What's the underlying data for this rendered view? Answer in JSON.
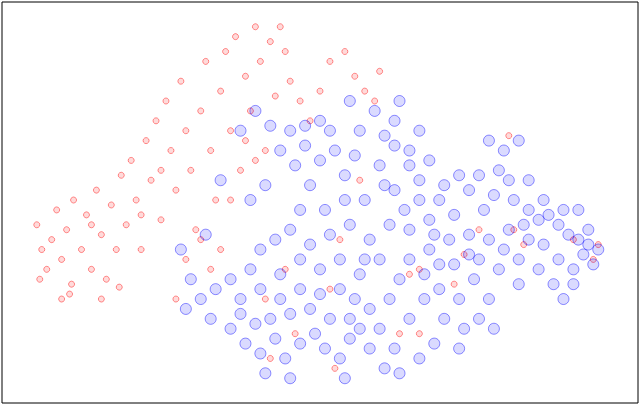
{
  "chart_data": {
    "type": "scatter",
    "xlim": [
      0,
      640
    ],
    "ylim": [
      0,
      405
    ],
    "tick_labels": false,
    "grid": false,
    "marker": "circle",
    "series": [
      {
        "color": "#ff0000",
        "points": [
          [
            35,
            180
          ],
          [
            40,
            155
          ],
          [
            45,
            135
          ],
          [
            38,
            125
          ],
          [
            50,
            165
          ],
          [
            55,
            195
          ],
          [
            60,
            145
          ],
          [
            65,
            175
          ],
          [
            70,
            120
          ],
          [
            72,
            205
          ],
          [
            80,
            155
          ],
          [
            85,
            190
          ],
          [
            90,
            135
          ],
          [
            95,
            215
          ],
          [
            100,
            170
          ],
          [
            105,
            125
          ],
          [
            110,
            200
          ],
          [
            115,
            155
          ],
          [
            120,
            230
          ],
          [
            125,
            180
          ],
          [
            130,
            245
          ],
          [
            135,
            205
          ],
          [
            140,
            155
          ],
          [
            145,
            265
          ],
          [
            150,
            225
          ],
          [
            155,
            285
          ],
          [
            160,
            185
          ],
          [
            165,
            305
          ],
          [
            170,
            255
          ],
          [
            175,
            215
          ],
          [
            180,
            325
          ],
          [
            185,
            275
          ],
          [
            190,
            235
          ],
          [
            195,
            175
          ],
          [
            200,
            295
          ],
          [
            205,
            345
          ],
          [
            210,
            255
          ],
          [
            215,
            205
          ],
          [
            220,
            315
          ],
          [
            225,
            355
          ],
          [
            230,
            275
          ],
          [
            235,
            370
          ],
          [
            240,
            235
          ],
          [
            245,
            330
          ],
          [
            250,
            295
          ],
          [
            255,
            380
          ],
          [
            260,
            345
          ],
          [
            265,
            255
          ],
          [
            270,
            365
          ],
          [
            275,
            310
          ],
          [
            280,
            380
          ],
          [
            285,
            355
          ],
          [
            290,
            325
          ],
          [
            300,
            305
          ],
          [
            310,
            285
          ],
          [
            320,
            315
          ],
          [
            330,
            345
          ],
          [
            345,
            355
          ],
          [
            355,
            330
          ],
          [
            365,
            315
          ],
          [
            375,
            305
          ],
          [
            380,
            335
          ],
          [
            200,
            165
          ],
          [
            185,
            145
          ],
          [
            175,
            105
          ],
          [
            60,
            105
          ],
          [
            68,
            110
          ],
          [
            100,
            105
          ],
          [
            118,
            117
          ],
          [
            90,
            180
          ],
          [
            140,
            190
          ],
          [
            160,
            235
          ],
          [
            245,
            265
          ],
          [
            255,
            245
          ],
          [
            230,
            205
          ],
          [
            220,
            155
          ],
          [
            210,
            135
          ],
          [
            420,
            135
          ],
          [
            410,
            130
          ],
          [
            465,
            150
          ],
          [
            480,
            175
          ],
          [
            515,
            175
          ],
          [
            575,
            165
          ],
          [
            595,
            145
          ],
          [
            600,
            160
          ],
          [
            340,
            165
          ],
          [
            295,
            70
          ],
          [
            420,
            70
          ],
          [
            330,
            115
          ],
          [
            270,
            45
          ],
          [
            335,
            35
          ],
          [
            400,
            70
          ],
          [
            285,
            135
          ],
          [
            265,
            105
          ],
          [
            510,
            270
          ],
          [
            455,
            120
          ],
          [
            525,
            160
          ],
          [
            360,
            225
          ]
        ]
      },
      {
        "color": "#0000ff",
        "points": [
          [
            290,
            275
          ],
          [
            305,
            260
          ],
          [
            320,
            285
          ],
          [
            335,
            255
          ],
          [
            350,
            305
          ],
          [
            360,
            275
          ],
          [
            375,
            295
          ],
          [
            385,
            270
          ],
          [
            395,
            285
          ],
          [
            400,
            305
          ],
          [
            410,
            255
          ],
          [
            380,
            240
          ],
          [
            345,
            230
          ],
          [
            310,
            220
          ],
          [
            325,
            195
          ],
          [
            365,
            205
          ],
          [
            395,
            215
          ],
          [
            410,
            240
          ],
          [
            420,
            225
          ],
          [
            430,
            185
          ],
          [
            440,
            205
          ],
          [
            455,
            190
          ],
          [
            470,
            170
          ],
          [
            450,
            165
          ],
          [
            430,
            155
          ],
          [
            410,
            175
          ],
          [
            390,
            180
          ],
          [
            370,
            165
          ],
          [
            350,
            180
          ],
          [
            330,
            170
          ],
          [
            310,
            160
          ],
          [
            300,
            145
          ],
          [
            320,
            135
          ],
          [
            340,
            145
          ],
          [
            360,
            130
          ],
          [
            380,
            145
          ],
          [
            400,
            125
          ],
          [
            390,
            105
          ],
          [
            370,
            95
          ],
          [
            380,
            75
          ],
          [
            395,
            55
          ],
          [
            400,
            30
          ],
          [
            410,
            85
          ],
          [
            425,
            105
          ],
          [
            440,
            115
          ],
          [
            445,
            85
          ],
          [
            435,
            60
          ],
          [
            460,
            105
          ],
          [
            475,
            125
          ],
          [
            490,
            105
          ],
          [
            495,
            75
          ],
          [
            480,
            85
          ],
          [
            465,
            75
          ],
          [
            460,
            55
          ],
          [
            420,
            45
          ],
          [
            490,
            265
          ],
          [
            500,
            235
          ],
          [
            510,
            225
          ],
          [
            495,
            210
          ],
          [
            515,
            205
          ],
          [
            530,
            195
          ],
          [
            540,
            185
          ],
          [
            550,
            190
          ],
          [
            560,
            180
          ],
          [
            570,
            170
          ],
          [
            580,
            165
          ],
          [
            590,
            160
          ],
          [
            585,
            150
          ],
          [
            595,
            140
          ],
          [
            575,
            135
          ],
          [
            560,
            145
          ],
          [
            545,
            160
          ],
          [
            530,
            165
          ],
          [
            520,
            145
          ],
          [
            505,
            155
          ],
          [
            490,
            165
          ],
          [
            480,
            145
          ],
          [
            500,
            135
          ],
          [
            520,
            120
          ],
          [
            540,
            135
          ],
          [
            555,
            120
          ],
          [
            565,
            105
          ],
          [
            575,
            120
          ],
          [
            590,
            175
          ],
          [
            580,
            195
          ],
          [
            565,
            195
          ],
          [
            545,
            205
          ],
          [
            525,
            180
          ],
          [
            510,
            175
          ],
          [
            485,
            195
          ],
          [
            470,
            215
          ],
          [
            460,
            230
          ],
          [
            480,
            230
          ],
          [
            520,
            265
          ],
          [
            505,
            255
          ],
          [
            530,
            225
          ],
          [
            600,
            155
          ],
          [
            180,
            155
          ],
          [
            190,
            125
          ],
          [
            200,
            105
          ],
          [
            210,
            85
          ],
          [
            215,
            115
          ],
          [
            230,
            125
          ],
          [
            240,
            105
          ],
          [
            250,
            135
          ],
          [
            260,
            155
          ],
          [
            275,
            165
          ],
          [
            290,
            175
          ],
          [
            300,
            195
          ],
          [
            185,
            95
          ],
          [
            220,
            225
          ],
          [
            240,
            275
          ],
          [
            255,
            295
          ],
          [
            270,
            280
          ],
          [
            280,
            255
          ],
          [
            295,
            240
          ],
          [
            265,
            220
          ],
          [
            250,
            205
          ],
          [
            205,
            170
          ],
          [
            230,
            75
          ],
          [
            245,
            60
          ],
          [
            260,
            50
          ],
          [
            275,
            65
          ],
          [
            285,
            45
          ],
          [
            300,
            60
          ],
          [
            315,
            70
          ],
          [
            325,
            55
          ],
          [
            340,
            45
          ],
          [
            350,
            65
          ],
          [
            330,
            85
          ],
          [
            310,
            95
          ],
          [
            290,
            90
          ],
          [
            270,
            85
          ],
          [
            255,
            80
          ],
          [
            240,
            90
          ],
          [
            265,
            30
          ],
          [
            290,
            25
          ],
          [
            345,
            25
          ],
          [
            360,
            75
          ],
          [
            355,
            105
          ],
          [
            340,
            115
          ],
          [
            320,
            110
          ],
          [
            300,
            115
          ],
          [
            280,
            105
          ],
          [
            260,
            115
          ],
          [
            280,
            130
          ],
          [
            350,
            85
          ],
          [
            370,
            55
          ],
          [
            385,
            35
          ],
          [
            395,
            260
          ],
          [
            420,
            275
          ],
          [
            430,
            245
          ],
          [
            445,
            220
          ],
          [
            320,
            245
          ],
          [
            305,
            280
          ],
          [
            330,
            275
          ],
          [
            355,
            250
          ],
          [
            385,
            220
          ],
          [
            405,
            195
          ],
          [
            420,
            205
          ],
          [
            440,
            140
          ],
          [
            455,
            140
          ],
          [
            470,
            150
          ],
          [
            410,
            145
          ],
          [
            425,
            130
          ],
          [
            345,
            205
          ],
          [
            365,
            145
          ],
          [
            435,
            170
          ]
        ]
      }
    ]
  }
}
